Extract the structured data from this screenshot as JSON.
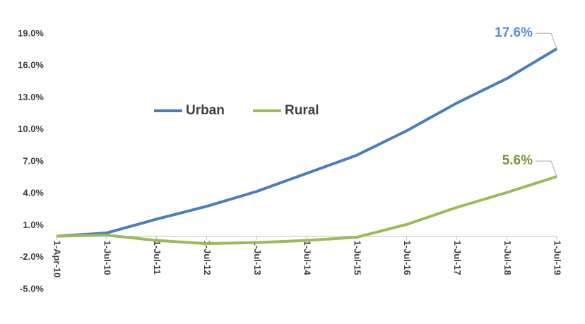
{
  "chart_data": {
    "type": "line",
    "categories": [
      "1-Apr-10",
      "1-Jul-10",
      "1-Jul-11",
      "1-Jul-12",
      "1-Jul-13",
      "1-Jul-14",
      "1-Jul-15",
      "1-Jul-16",
      "1-Jul-17",
      "1-Jul-18",
      "1-Jul-19"
    ],
    "series": [
      {
        "name": "Urban",
        "color": "#4a7ebb",
        "label_color": "#5b8fd6",
        "values": [
          0.0,
          0.3,
          1.6,
          2.8,
          4.2,
          5.9,
          7.6,
          9.9,
          12.5,
          14.8,
          17.6
        ],
        "value_labels": [
          null,
          null,
          null,
          null,
          null,
          null,
          null,
          null,
          null,
          null,
          "17.6%"
        ]
      },
      {
        "name": "Rural",
        "color": "#9bbb59",
        "label_color": "#77933c",
        "values": [
          0.0,
          0.1,
          -0.4,
          -0.7,
          -0.6,
          -0.4,
          -0.1,
          1.1,
          2.7,
          4.1,
          5.6
        ],
        "value_labels": [
          null,
          null,
          null,
          null,
          null,
          null,
          null,
          null,
          null,
          null,
          "5.6%"
        ]
      }
    ],
    "ylim": [
      -5,
      19
    ],
    "yticks": [
      {
        "value": -5,
        "label": "-5.0%"
      },
      {
        "value": -2,
        "label": "-2.0%"
      },
      {
        "value": 1,
        "label": "1.0%"
      },
      {
        "value": 4,
        "label": "4.0%"
      },
      {
        "value": 7,
        "label": "7.0%"
      },
      {
        "value": 10,
        "label": "10.0%"
      },
      {
        "value": 13,
        "label": "13.0%"
      },
      {
        "value": 16,
        "label": "16.0%"
      },
      {
        "value": 19,
        "label": "19.0%"
      }
    ],
    "grid": false
  }
}
